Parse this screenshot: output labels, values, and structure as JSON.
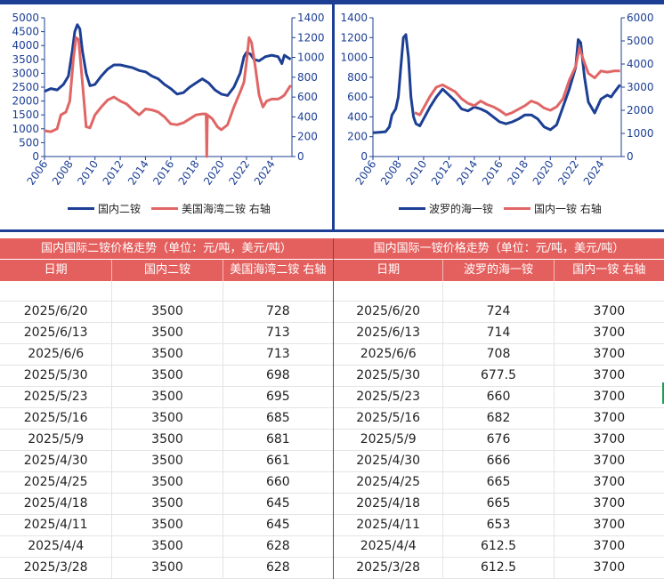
{
  "chart_data": [
    {
      "type": "line",
      "x_ticks": [
        "2006",
        "2008",
        "2010",
        "2012",
        "2014",
        "2016",
        "2018",
        "2020",
        "2022",
        "2024"
      ],
      "y_ticks": [
        0,
        500,
        1000,
        1500,
        2000,
        2500,
        3000,
        3500,
        4000,
        4500,
        5000
      ],
      "y2_ticks": [
        0,
        200,
        400,
        600,
        800,
        1000,
        1200,
        1400
      ],
      "ylim": [
        0,
        5000
      ],
      "y2lim": [
        0,
        1400
      ],
      "xlim": [
        2006,
        2025.6
      ],
      "legend_position": "bottom",
      "series": [
        {
          "name": "国内二铵",
          "axis": "left",
          "color": "#1c3f94",
          "points": [
            [
              2006,
              2350
            ],
            [
              2006.5,
              2450
            ],
            [
              2007,
              2400
            ],
            [
              2007.5,
              2600
            ],
            [
              2007.9,
              2900
            ],
            [
              2008.2,
              3800
            ],
            [
              2008.4,
              4500
            ],
            [
              2008.6,
              4750
            ],
            [
              2008.8,
              4600
            ],
            [
              2009.0,
              3800
            ],
            [
              2009.3,
              3000
            ],
            [
              2009.6,
              2550
            ],
            [
              2010,
              2600
            ],
            [
              2010.5,
              2900
            ],
            [
              2011,
              3150
            ],
            [
              2011.5,
              3300
            ],
            [
              2012,
              3300
            ],
            [
              2012.5,
              3250
            ],
            [
              2013,
              3200
            ],
            [
              2013.5,
              3100
            ],
            [
              2014,
              3050
            ],
            [
              2014.5,
              2900
            ],
            [
              2015,
              2800
            ],
            [
              2015.5,
              2600
            ],
            [
              2016,
              2450
            ],
            [
              2016.5,
              2250
            ],
            [
              2017,
              2300
            ],
            [
              2017.5,
              2500
            ],
            [
              2018,
              2650
            ],
            [
              2018.5,
              2800
            ],
            [
              2019,
              2650
            ],
            [
              2019.5,
              2400
            ],
            [
              2020,
              2250
            ],
            [
              2020.5,
              2200
            ],
            [
              2021,
              2500
            ],
            [
              2021.5,
              3000
            ],
            [
              2021.8,
              3600
            ],
            [
              2022,
              3750
            ],
            [
              2022.3,
              3700
            ],
            [
              2022.6,
              3500
            ],
            [
              2023,
              3450
            ],
            [
              2023.5,
              3600
            ],
            [
              2024,
              3650
            ],
            [
              2024.5,
              3600
            ],
            [
              2024.8,
              3350
            ],
            [
              2025,
              3650
            ],
            [
              2025.5,
              3500
            ]
          ]
        },
        {
          "name": "美国海湾二铵 右轴",
          "axis": "right",
          "color": "#e06666",
          "points": [
            [
              2006,
              260
            ],
            [
              2006.5,
              250
            ],
            [
              2007,
              280
            ],
            [
              2007.3,
              420
            ],
            [
              2007.7,
              450
            ],
            [
              2008,
              560
            ],
            [
              2008.3,
              1000
            ],
            [
              2008.5,
              1200
            ],
            [
              2008.7,
              1180
            ],
            [
              2008.9,
              900
            ],
            [
              2009.1,
              600
            ],
            [
              2009.3,
              300
            ],
            [
              2009.6,
              290
            ],
            [
              2010,
              420
            ],
            [
              2010.5,
              500
            ],
            [
              2011,
              570
            ],
            [
              2011.5,
              600
            ],
            [
              2012,
              560
            ],
            [
              2012.5,
              530
            ],
            [
              2013,
              470
            ],
            [
              2013.5,
              420
            ],
            [
              2014,
              480
            ],
            [
              2014.5,
              470
            ],
            [
              2015,
              450
            ],
            [
              2015.5,
              400
            ],
            [
              2016,
              330
            ],
            [
              2016.5,
              320
            ],
            [
              2017,
              340
            ],
            [
              2017.5,
              380
            ],
            [
              2018,
              420
            ],
            [
              2018.5,
              430
            ],
            [
              2018.8,
              430
            ],
            [
              2018.85,
              0
            ],
            [
              2018.9,
              420
            ],
            [
              2019.3,
              380
            ],
            [
              2019.7,
              300
            ],
            [
              2020,
              270
            ],
            [
              2020.5,
              320
            ],
            [
              2021,
              500
            ],
            [
              2021.5,
              650
            ],
            [
              2021.8,
              750
            ],
            [
              2022,
              950
            ],
            [
              2022.2,
              1200
            ],
            [
              2022.4,
              1150
            ],
            [
              2022.7,
              900
            ],
            [
              2023,
              620
            ],
            [
              2023.3,
              500
            ],
            [
              2023.6,
              560
            ],
            [
              2024,
              580
            ],
            [
              2024.5,
              580
            ],
            [
              2024.8,
              600
            ],
            [
              2025,
              620
            ],
            [
              2025.5,
              720
            ]
          ]
        }
      ]
    },
    {
      "type": "line",
      "x_ticks": [
        "2006",
        "2008",
        "2010",
        "2012",
        "2014",
        "2016",
        "2018",
        "2020",
        "2022",
        "2024"
      ],
      "y_ticks": [
        0,
        200,
        400,
        600,
        800,
        1000,
        1200,
        1400
      ],
      "y2_ticks": [
        0,
        1000,
        2000,
        3000,
        4000,
        5000,
        6000
      ],
      "ylim": [
        0,
        1400
      ],
      "y2lim": [
        0,
        6000
      ],
      "xlim": [
        2006,
        2025.6
      ],
      "legend_position": "bottom",
      "series": [
        {
          "name": "波罗的海一铵",
          "axis": "left",
          "color": "#1c3f94",
          "points": [
            [
              2006,
              240
            ],
            [
              2006.5,
              245
            ],
            [
              2007,
              250
            ],
            [
              2007.3,
              300
            ],
            [
              2007.5,
              420
            ],
            [
              2007.8,
              480
            ],
            [
              2008,
              600
            ],
            [
              2008.2,
              900
            ],
            [
              2008.4,
              1200
            ],
            [
              2008.6,
              1230
            ],
            [
              2008.8,
              1000
            ],
            [
              2009.0,
              600
            ],
            [
              2009.2,
              400
            ],
            [
              2009.4,
              330
            ],
            [
              2009.7,
              310
            ],
            [
              2010,
              380
            ],
            [
              2010.5,
              500
            ],
            [
              2011,
              600
            ],
            [
              2011.5,
              680
            ],
            [
              2012,
              620
            ],
            [
              2012.5,
              560
            ],
            [
              2013,
              480
            ],
            [
              2013.5,
              460
            ],
            [
              2014,
              500
            ],
            [
              2014.5,
              480
            ],
            [
              2015,
              450
            ],
            [
              2015.5,
              400
            ],
            [
              2016,
              350
            ],
            [
              2016.5,
              330
            ],
            [
              2017,
              350
            ],
            [
              2017.5,
              380
            ],
            [
              2018,
              420
            ],
            [
              2018.5,
              420
            ],
            [
              2019,
              380
            ],
            [
              2019.5,
              300
            ],
            [
              2020,
              270
            ],
            [
              2020.5,
              320
            ],
            [
              2021,
              500
            ],
            [
              2021.5,
              680
            ],
            [
              2022,
              900
            ],
            [
              2022.2,
              1180
            ],
            [
              2022.4,
              1150
            ],
            [
              2022.7,
              800
            ],
            [
              2023,
              550
            ],
            [
              2023.5,
              440
            ],
            [
              2024,
              580
            ],
            [
              2024.5,
              620
            ],
            [
              2024.8,
              600
            ],
            [
              2025,
              640
            ],
            [
              2025.5,
              724
            ]
          ]
        },
        {
          "name": "国内一铵 右轴",
          "axis": "right",
          "color": "#e06666",
          "points": [
            [
              2009.3,
              1900
            ],
            [
              2009.7,
              1800
            ],
            [
              2010,
              2100
            ],
            [
              2010.5,
              2600
            ],
            [
              2011,
              3000
            ],
            [
              2011.5,
              3100
            ],
            [
              2012,
              2950
            ],
            [
              2012.5,
              2800
            ],
            [
              2013,
              2500
            ],
            [
              2013.5,
              2300
            ],
            [
              2014,
              2200
            ],
            [
              2014.5,
              2400
            ],
            [
              2015,
              2250
            ],
            [
              2015.5,
              2150
            ],
            [
              2016,
              2000
            ],
            [
              2016.5,
              1800
            ],
            [
              2017,
              1900
            ],
            [
              2017.5,
              2050
            ],
            [
              2018,
              2200
            ],
            [
              2018.5,
              2400
            ],
            [
              2019,
              2300
            ],
            [
              2019.5,
              2100
            ],
            [
              2020,
              2000
            ],
            [
              2020.5,
              2150
            ],
            [
              2021,
              2500
            ],
            [
              2021.5,
              3300
            ],
            [
              2022,
              3900
            ],
            [
              2022.3,
              4700
            ],
            [
              2022.6,
              4200
            ],
            [
              2023,
              3600
            ],
            [
              2023.5,
              3400
            ],
            [
              2024,
              3700
            ],
            [
              2024.5,
              3650
            ],
            [
              2025,
              3700
            ],
            [
              2025.5,
              3700
            ]
          ]
        }
      ]
    }
  ],
  "tables": {
    "left": {
      "title": "国内国际二铵价格走势（单位：元/吨，美元/吨）",
      "headers": [
        "日期",
        "国内二铵",
        "美国海湾二铵 右轴"
      ],
      "rows": [
        [
          "2025/6/20",
          "3500",
          "728"
        ],
        [
          "2025/6/13",
          "3500",
          "713"
        ],
        [
          "2025/6/6",
          "3500",
          "713"
        ],
        [
          "2025/5/30",
          "3500",
          "698"
        ],
        [
          "2025/5/23",
          "3500",
          "695"
        ],
        [
          "2025/5/16",
          "3500",
          "685"
        ],
        [
          "2025/5/9",
          "3500",
          "681"
        ],
        [
          "2025/4/30",
          "3500",
          "661"
        ],
        [
          "2025/4/25",
          "3500",
          "660"
        ],
        [
          "2025/4/18",
          "3500",
          "645"
        ],
        [
          "2025/4/11",
          "3500",
          "645"
        ],
        [
          "2025/4/4",
          "3500",
          "628"
        ],
        [
          "2025/3/28",
          "3500",
          "628"
        ]
      ]
    },
    "right": {
      "title": "国内国际一铵价格走势（单位：元/吨，美元/吨）",
      "headers": [
        "日期",
        "波罗的海一铵",
        "国内一铵 右轴"
      ],
      "rows": [
        [
          "2025/6/20",
          "724",
          "3700"
        ],
        [
          "2025/6/13",
          "714",
          "3700"
        ],
        [
          "2025/6/6",
          "708",
          "3700"
        ],
        [
          "2025/5/30",
          "677.5",
          "3700"
        ],
        [
          "2025/5/23",
          "660",
          "3700"
        ],
        [
          "2025/5/16",
          "682",
          "3700"
        ],
        [
          "2025/5/9",
          "676",
          "3700"
        ],
        [
          "2025/4/30",
          "666",
          "3700"
        ],
        [
          "2025/4/25",
          "665",
          "3700"
        ],
        [
          "2025/4/18",
          "665",
          "3700"
        ],
        [
          "2025/4/11",
          "653",
          "3700"
        ],
        [
          "2025/4/4",
          "612.5",
          "3700"
        ],
        [
          "2025/3/28",
          "612.5",
          "3700"
        ]
      ]
    }
  }
}
